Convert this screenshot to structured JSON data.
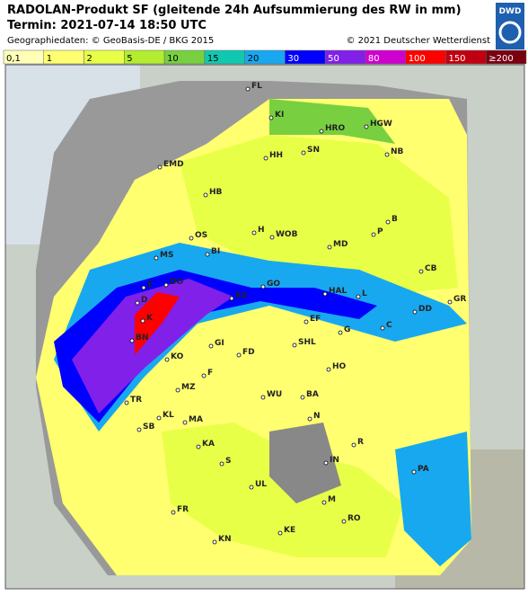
{
  "header": {
    "title": "RADOLAN-Produkt SF (gleitende 24h Aufsummierung des RW in mm)",
    "termin": "Termin: 2021-07-14 18:50 UTC",
    "geodata": "Geographiedaten: © GeoBasis-DE / BKG 2015",
    "copyright": "© 2021 Deutscher Wetterdienst",
    "logo": "DWD"
  },
  "legend": [
    {
      "label": "0,1",
      "color": "#ffffb8"
    },
    {
      "label": "1",
      "color": "#ffff70"
    },
    {
      "label": "2",
      "color": "#e8ff48"
    },
    {
      "label": "5",
      "color": "#b4ec30"
    },
    {
      "label": "10",
      "color": "#78d040"
    },
    {
      "label": "15",
      "color": "#10c8b0"
    },
    {
      "label": "20",
      "color": "#18a8f0"
    },
    {
      "label": "30",
      "color": "#0000ff"
    },
    {
      "label": "50",
      "color": "#8020e8"
    },
    {
      "label": "80",
      "color": "#d000d0"
    },
    {
      "label": "100",
      "color": "#ff0000"
    },
    {
      "label": "150",
      "color": "#c00010"
    },
    {
      "label": "≥200",
      "color": "#7a0010"
    }
  ],
  "cities": [
    "FL",
    "KI",
    "HGW",
    "HRO",
    "SN",
    "NB",
    "HH",
    "EMD",
    "HB",
    "B",
    "P",
    "H",
    "WOB",
    "MD",
    "OS",
    "BI",
    "MS",
    "CB",
    "E",
    "DO",
    "D",
    "KS",
    "GO",
    "HAL",
    "L",
    "GR",
    "K",
    "EF",
    "DD",
    "C",
    "G",
    "BN",
    "SHL",
    "GI",
    "FD",
    "KO",
    "HO",
    "F",
    "MZ",
    "TR",
    "WU",
    "BA",
    "KL",
    "SB",
    "MA",
    "N",
    "R",
    "KA",
    "S",
    "IN",
    "UL",
    "PA",
    "FR",
    "M",
    "RO",
    "KN",
    "KE"
  ]
}
